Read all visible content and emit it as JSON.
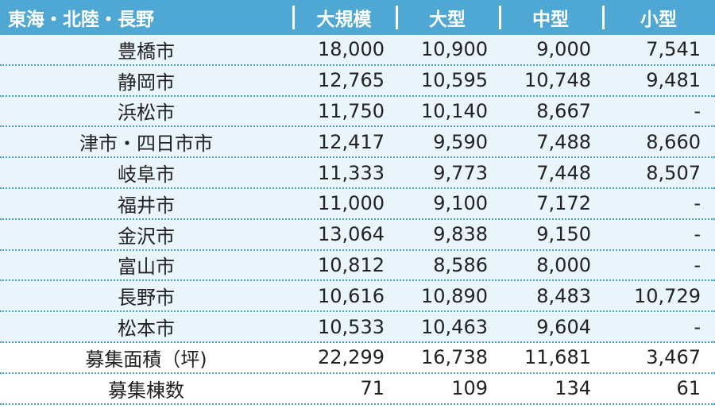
{
  "headers": [
    "東海・北陸・長野",
    "大規模",
    "大型",
    "中型",
    "小型"
  ],
  "rows": [
    {
      "city": "豊橋市",
      "large_scale": "18,000",
      "large": "10,900",
      "medium": "9,000",
      "small": "7,541"
    },
    {
      "city": "静岡市",
      "large_scale": "12,765",
      "large": "10,595",
      "medium": "10,748",
      "small": "9,481"
    },
    {
      "city": "浜松市",
      "large_scale": "11,750",
      "large": "10,140",
      "medium": "8,667",
      "small": "-"
    },
    {
      "city": "津市・四日市市",
      "large_scale": "12,417",
      "large": "9,590",
      "medium": "7,488",
      "small": "8,660"
    },
    {
      "city": "岐阜市",
      "large_scale": "11,333",
      "large": "9,773",
      "medium": "7,448",
      "small": "8,507"
    },
    {
      "city": "福井市",
      "large_scale": "11,000",
      "large": "9,100",
      "medium": "7,172",
      "small": "-"
    },
    {
      "city": "金沢市",
      "large_scale": "13,064",
      "large": "9,838",
      "medium": "9,150",
      "small": "-"
    },
    {
      "city": "富山市",
      "large_scale": "10,812",
      "large": "8,586",
      "medium": "8,000",
      "small": "-"
    },
    {
      "city": "長野市",
      "large_scale": "10,616",
      "large": "10,890",
      "medium": "8,483",
      "small": "10,729"
    },
    {
      "city": "松本市",
      "large_scale": "10,533",
      "large": "10,463",
      "medium": "9,604",
      "small": "-"
    }
  ],
  "summary_rows": [
    {
      "label": "募集面積（坪)",
      "large_scale": "22,299",
      "large": "16,738",
      "medium": "11,681",
      "small": "3,467"
    },
    {
      "label": "募集棟数",
      "large_scale": "71",
      "large": "109",
      "medium": "134",
      "small": "61"
    }
  ],
  "colors": {
    "header_bg": "#4fa8d4",
    "stripe_bg": "#eaf4fb",
    "divider": "#4aa3c9"
  }
}
